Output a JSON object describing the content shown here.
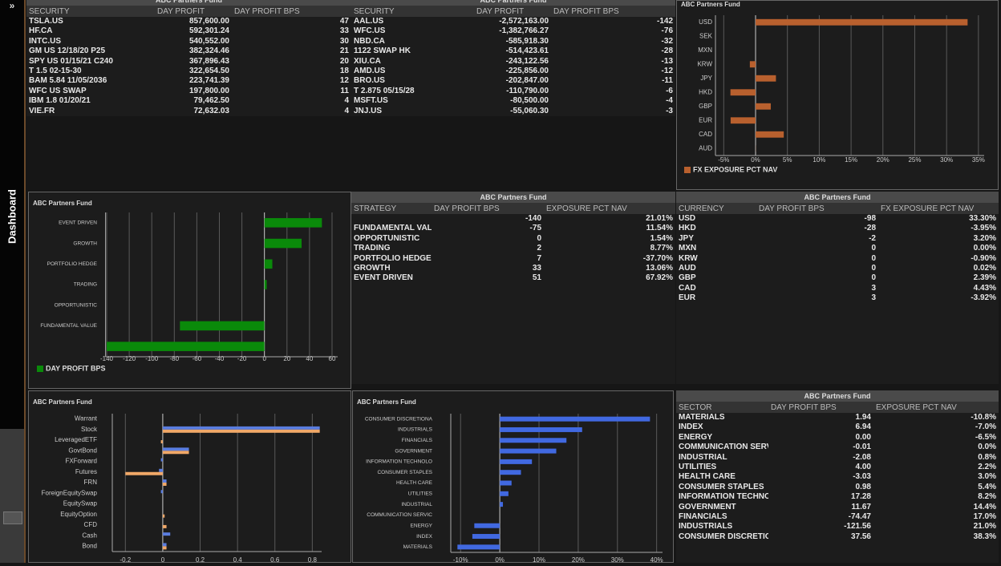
{
  "sidebar": {
    "icon": "»",
    "label": "Dashboard"
  },
  "tables": [
    {
      "title": "ABC Partners Fund",
      "columns": [
        "SECURITY",
        "DAY PROFIT",
        "DAY PROFIT BPS"
      ],
      "rows": [
        [
          "TSLA.US",
          "857,600.00",
          "47"
        ],
        [
          "HF.CA",
          "592,301.24",
          "33"
        ],
        [
          "INTC.US",
          "540,552.00",
          "30"
        ],
        [
          "GM US 12/18/20 P25",
          "382,324.46",
          "21"
        ],
        [
          "SPY US 01/15/21 C240",
          "367,896.43",
          "20"
        ],
        [
          "T 1.5 02-15-30",
          "322,654.50",
          "18"
        ],
        [
          "BAM 5.84 11/05/2036",
          "223,741.39",
          "12"
        ],
        [
          "WFC US SWAP",
          "197,800.00",
          "11"
        ],
        [
          "IBM 1.8 01/20/21",
          "79,462.50",
          "4"
        ],
        [
          "VIE.FR",
          "72,632.03",
          "4"
        ]
      ]
    },
    {
      "title": "ABC Partners Fund",
      "columns": [
        "SECURITY",
        "DAY PROFIT",
        "DAY PROFIT BPS"
      ],
      "rows": [
        [
          "AAL.US",
          "-2,572,163.00",
          "-142"
        ],
        [
          "WFC.US",
          "-1,382,766.27",
          "-76"
        ],
        [
          "NBD.CA",
          "-585,918.30",
          "-32"
        ],
        [
          "1122 SWAP HK",
          "-514,423.61",
          "-28"
        ],
        [
          "XIU.CA",
          "-243,122.56",
          "-13"
        ],
        [
          "AMD.US",
          "-225,856.00",
          "-12"
        ],
        [
          "BRO.US",
          "-202,847.00",
          "-11"
        ],
        [
          "T 2.875 05/15/28",
          "-110,790.00",
          "-6"
        ],
        [
          "MSFT.US",
          "-80,500.00",
          "-4"
        ],
        [
          "JNJ.US",
          "-55,060.30",
          "-3"
        ]
      ]
    },
    {
      "title": "ABC Partners Fund",
      "columns": [
        "STRATEGY",
        "DAY PROFIT BPS",
        "EXPOSURE PCT NAV"
      ],
      "rows": [
        [
          null,
          "-140",
          "21.01%"
        ],
        [
          "FUNDAMENTAL VAL...",
          "-75",
          "11.54%"
        ],
        [
          "OPPORTUNISTIC",
          "0",
          "1.54%"
        ],
        [
          "TRADING",
          "2",
          "8.77%"
        ],
        [
          "PORTFOLIO HEDGE",
          "7",
          "-37.70%"
        ],
        [
          "GROWTH",
          "33",
          "13.06%"
        ],
        [
          "EVENT DRIVEN",
          "51",
          "67.92%"
        ]
      ]
    },
    {
      "title": "ABC Partners Fund",
      "columns": [
        "CURRENCY",
        "DAY PROFIT BPS",
        "FX EXPOSURE PCT NAV"
      ],
      "rows": [
        [
          "USD",
          "-98",
          "33.30%"
        ],
        [
          "HKD",
          "-28",
          "-3.95%"
        ],
        [
          "JPY",
          "-2",
          "3.20%"
        ],
        [
          "MXN",
          "0",
          "0.00%"
        ],
        [
          "KRW",
          "0",
          "-0.90%"
        ],
        [
          "AUD",
          "0",
          "0.02%"
        ],
        [
          "GBP",
          "0",
          "2.39%"
        ],
        [
          "CAD",
          "3",
          "4.43%"
        ],
        [
          "EUR",
          "3",
          "-3.92%"
        ]
      ]
    },
    {
      "title": "ABC Partners Fund",
      "columns": [
        "SECTOR",
        "DAY PROFIT BPS",
        "EXPOSURE PCT NAV"
      ],
      "rows": [
        [
          "MATERIALS",
          "1.94",
          "-10.8%"
        ],
        [
          "INDEX",
          "6.94",
          "-7.0%"
        ],
        [
          "ENERGY",
          "0.00",
          "-6.5%"
        ],
        [
          "COMMUNICATION SERV...",
          "-0.01",
          "0.0%"
        ],
        [
          "INDUSTRIAL",
          "-2.08",
          "0.8%"
        ],
        [
          "UTILITIES",
          "4.00",
          "2.2%"
        ],
        [
          "HEALTH CARE",
          "-3.03",
          "3.0%"
        ],
        [
          "CONSUMER STAPLES",
          "0.98",
          "5.4%"
        ],
        [
          "INFORMATION TECHNO...",
          "17.28",
          "8.2%"
        ],
        [
          "GOVERNMENT",
          "11.67",
          "14.4%"
        ],
        [
          "FINANCIALS",
          "-74.47",
          "17.0%"
        ],
        [
          "INDUSTRIALS",
          "-121.56",
          "21.0%"
        ],
        [
          "CONSUMER DISCRETIO...",
          "37.56",
          "38.3%"
        ]
      ]
    }
  ],
  "chart_data": [
    {
      "type": "barh",
      "title": "ABC Partners Fund",
      "categories": [
        "USD",
        "SEK",
        "MXN",
        "KRW",
        "JPY",
        "HKD",
        "GBP",
        "EUR",
        "CAD",
        "AUD"
      ],
      "series": [
        {
          "name": "FX EXPOSURE PCT NAV",
          "color": "#b8602e",
          "values": [
            33.3,
            0,
            0,
            -0.9,
            3.2,
            -3.95,
            2.39,
            -3.92,
            4.43,
            0.02
          ]
        }
      ],
      "xlim": [
        -6.3,
        35.9
      ],
      "xticks": [
        {
          "value": -5,
          "label": "-5%"
        },
        {
          "value": 0,
          "label": "0%"
        },
        {
          "value": 5,
          "label": "5%"
        },
        {
          "value": 10,
          "label": "10%"
        },
        {
          "value": 15,
          "label": "15%"
        },
        {
          "value": 20,
          "label": "20%"
        },
        {
          "value": 25,
          "label": "25%"
        },
        {
          "value": 30,
          "label": "30%"
        },
        {
          "value": 35,
          "label": "35%"
        }
      ],
      "grid": true,
      "legend": "bottom-left"
    },
    {
      "type": "barh",
      "title": "ABC Partners Fund",
      "categories": [
        "EVENT DRIVEN",
        "GROWTH",
        "PORTFOLIO HEDGE",
        "TRADING",
        "OPPORTUNISTIC",
        "FUNDAMENTAL VALUE",
        null
      ],
      "series": [
        {
          "name": "DAY PROFIT BPS",
          "color": "#0a8a0a",
          "values": [
            51,
            33,
            7,
            2,
            0,
            -75,
            -140
          ]
        }
      ],
      "xlim": [
        -141,
        65
      ],
      "xticks": [
        -140,
        -120,
        -100,
        -80,
        -60,
        -40,
        -20,
        0,
        20,
        40,
        60
      ],
      "grid": true,
      "legend": "bottom-left"
    },
    {
      "type": "barh",
      "title": "ABC Partners Fund",
      "categories": [
        "Warrant",
        "Stock",
        "LeveragedETF",
        "GovtBond",
        "FXForward",
        "Futures",
        "FRN",
        "ForeignEquitySwap",
        "EquitySwap",
        "EquityOption",
        "CFD",
        "Cash",
        "Bond"
      ],
      "series": [
        {
          "color": "#5a7de0",
          "values": [
            0,
            0.84,
            0,
            0.14,
            -0.01,
            -0.02,
            0.02,
            -0.01,
            0,
            0,
            0,
            0.04,
            0.02
          ]
        },
        {
          "color": "#f0a868",
          "values": [
            0,
            0.84,
            -0.01,
            0.14,
            0,
            -0.2,
            0.02,
            0,
            0,
            0.01,
            0.02,
            0,
            0.02
          ]
        }
      ],
      "xlim": [
        -0.27,
        0.85
      ],
      "xticks": [
        -0.2,
        0,
        0.2,
        0.4,
        0.6,
        0.8
      ],
      "grid": true
    },
    {
      "type": "barh",
      "title": "ABC Partners Fund",
      "categories": [
        "CONSUMER DISCRETIONA",
        "INDUSTRIALS",
        "FINANCIALS",
        "GOVERNMENT",
        "INFORMATION TECHNOLO",
        "CONSUMER STAPLES",
        "HEALTH CARE",
        "UTILITIES",
        "INDUSTRIAL",
        "COMMUNICATION SERVIC",
        "ENERGY",
        "INDEX",
        "MATERIALS"
      ],
      "series": [
        {
          "color": "#4169e1",
          "values": [
            38.3,
            21.0,
            17.0,
            14.4,
            8.2,
            5.4,
            3.0,
            2.2,
            0.8,
            0.0,
            -6.5,
            -7.0,
            -10.8
          ]
        }
      ],
      "xlim": [
        -12.5,
        41.5
      ],
      "xticks": [
        {
          "value": -10,
          "label": "-10%"
        },
        {
          "value": 0,
          "label": "0%"
        },
        {
          "value": 10,
          "label": "10%"
        },
        {
          "value": 20,
          "label": "20%"
        },
        {
          "value": 30,
          "label": "30%"
        },
        {
          "value": 40,
          "label": "40%"
        }
      ],
      "grid": true
    }
  ]
}
